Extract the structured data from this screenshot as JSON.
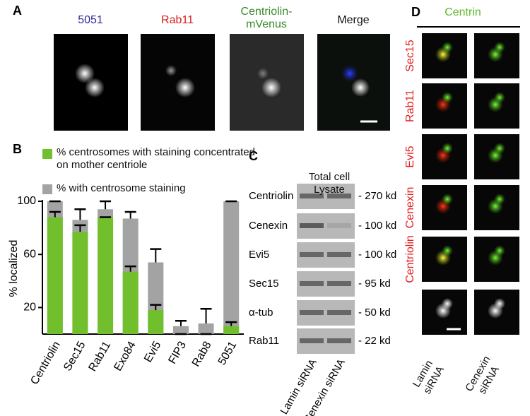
{
  "panel_letters": [
    "A",
    "B",
    "C",
    "D"
  ],
  "panel_a": {
    "labels": [
      {
        "text": "5051",
        "color": "#2a2a9c"
      },
      {
        "text": "Rab11",
        "color": "#d42020"
      },
      {
        "text": "Centriolin-mVenus",
        "color": "#3a8a2a"
      },
      {
        "text": "Merge",
        "color": "#111111"
      }
    ]
  },
  "chart_data": {
    "type": "bar",
    "y_label": "% localized",
    "categories": [
      "Centriolin",
      "Sec15",
      "Rab11",
      "Exo84",
      "Evi5",
      "FIP3",
      "Rab8",
      "5051"
    ],
    "series": [
      {
        "name": "% centrosomes with staining concentrated on mother centriole",
        "color": "#72bf2e",
        "values": [
          88,
          77,
          88,
          47,
          18,
          0,
          0,
          6
        ],
        "errors": [
          4,
          5,
          0,
          4,
          4,
          0,
          0,
          3
        ]
      },
      {
        "name": "% with centrosome staining",
        "color": "#a3a3a3",
        "values": [
          100,
          86,
          94,
          87,
          54,
          6,
          8,
          100
        ],
        "errors": [
          0,
          8,
          6,
          5,
          10,
          4,
          11,
          0
        ]
      }
    ],
    "ylim": [
      0,
      100
    ],
    "yticks": [
      20,
      60,
      100
    ]
  },
  "panel_c": {
    "title": "Total cell Lysate",
    "rows": [
      {
        "label": "Centriolin",
        "size": "- 270 kd"
      },
      {
        "label": "Cenexin",
        "size": "- 100 kd"
      },
      {
        "label": "Evi5",
        "size": "- 100 kd"
      },
      {
        "label": "Sec15",
        "size": "- 95 kd"
      },
      {
        "label": "α-tub",
        "size": "- 50 kd"
      },
      {
        "label": "Rab11",
        "size": "- 22 kd"
      }
    ],
    "columns": [
      "Lamin siRNA",
      "Cenexin siRNA"
    ]
  },
  "panel_d": {
    "title": "Centrin",
    "rows": [
      "Sec15",
      "Rab11",
      "Evi5",
      "Cenexin",
      "Centriolin"
    ],
    "columns": [
      "Lamin siRNA",
      "Cenexin siRNA"
    ]
  }
}
